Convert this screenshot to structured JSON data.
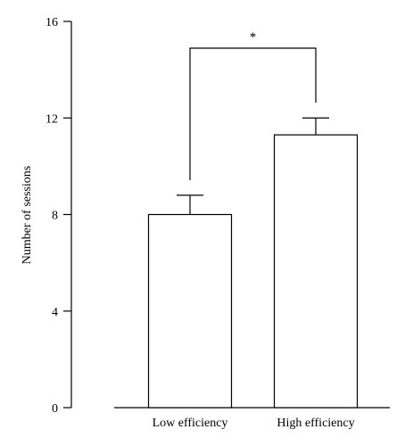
{
  "chart_data": {
    "type": "bar",
    "categories": [
      "Low efficiency",
      "High efficiency"
    ],
    "values": [
      8.0,
      11.3
    ],
    "error": [
      0.8,
      0.7
    ],
    "xlabel": "",
    "ylabel": "Number of sessions",
    "ylim": [
      0,
      16
    ],
    "yticks": [
      0,
      4,
      8,
      12,
      16
    ],
    "yticklabels": [
      "0",
      "4",
      "8",
      "12",
      "16"
    ],
    "grid": false,
    "legend": "none",
    "significance": {
      "between": [
        "Low efficiency",
        "High efficiency"
      ],
      "label": "*"
    },
    "colors": {
      "bar_fill": "#ffffff",
      "stroke": "#000000"
    }
  }
}
